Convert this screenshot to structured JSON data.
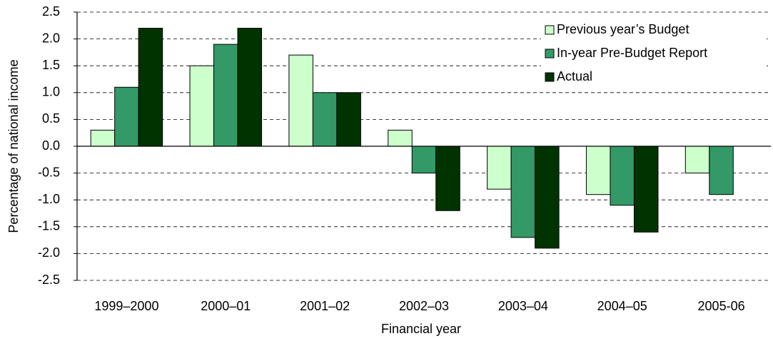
{
  "chart_data": {
    "type": "bar",
    "x_label": "Financial year",
    "y_label": "Percentage of national income",
    "categories": [
      "1999–2000",
      "2000–01",
      "2001–02",
      "2002–03",
      "2003–04",
      "2004–05",
      "2005-06"
    ],
    "series": [
      {
        "name": "Previous year’s Budget",
        "color": "#ccffcc",
        "values": [
          0.3,
          1.5,
          1.7,
          0.3,
          -0.8,
          -0.9,
          -0.5
        ]
      },
      {
        "name": "In-year Pre-Budget Report",
        "color": "#339966",
        "values": [
          1.1,
          1.9,
          1.0,
          -0.5,
          -1.7,
          -1.1,
          -0.9
        ]
      },
      {
        "name": "Actual",
        "color": "#003300",
        "values": [
          2.2,
          2.2,
          1.0,
          -1.2,
          -1.9,
          -1.6,
          null
        ]
      }
    ],
    "ylim": [
      -2.5,
      2.5
    ],
    "yticks": [
      2.5,
      {
        "value": 2,
        "label": "2.0"
      },
      1.5,
      {
        "value": 1,
        "label": "1.0"
      },
      0.5,
      {
        "value": 0,
        "label": "0.0"
      },
      -0.5,
      {
        "value": -1,
        "label": "-1.0"
      },
      -1.5,
      {
        "value": -2,
        "label": "-2.0"
      },
      -2.5
    ],
    "grid": true,
    "legend": "upper right"
  }
}
